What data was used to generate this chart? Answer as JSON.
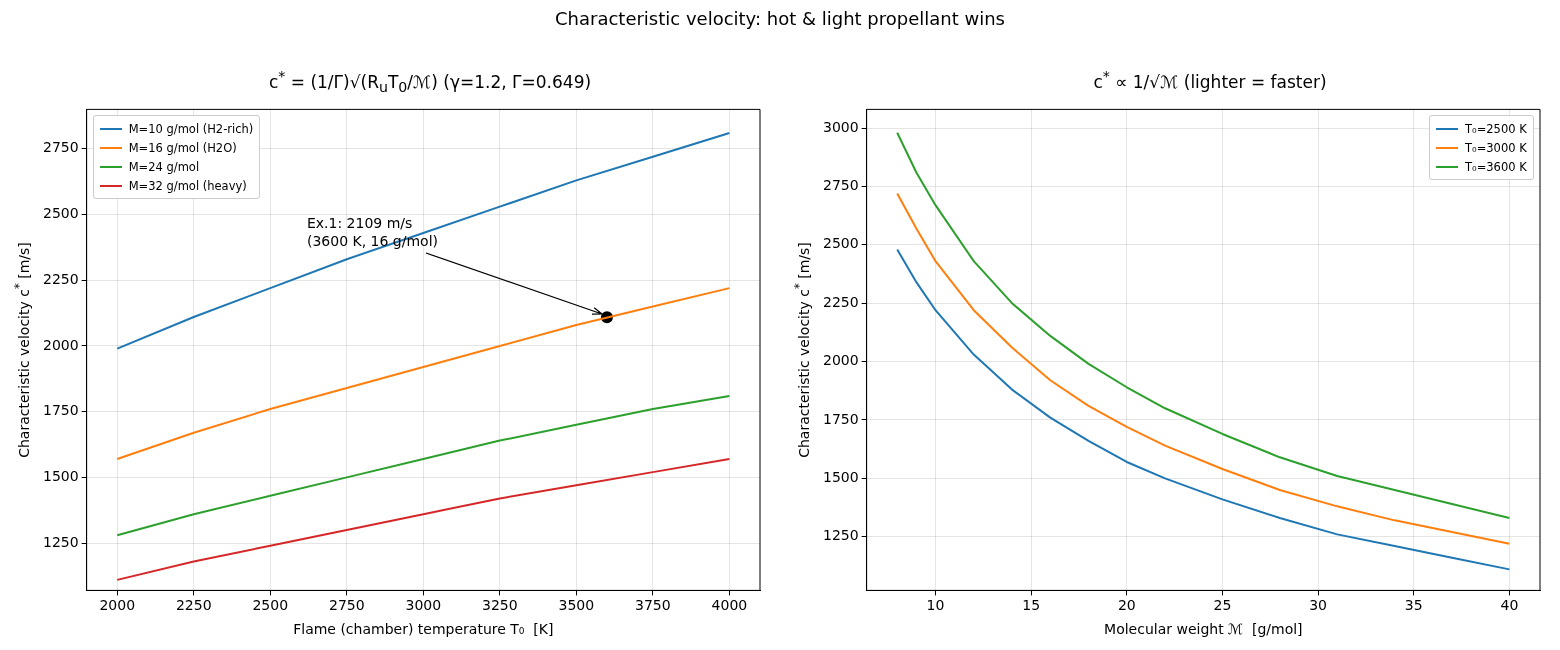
{
  "chart_data": [
    {
      "type": "line",
      "title": "c$^{*}$ = (1/Γ)√(R$_{u}$T$_{0}$/ℳ)   (γ=1.2, Γ=0.649)",
      "xlabel": "Flame (chamber) temperature T₀  [K]",
      "ylabel": "Characteristic velocity c$^{*}$  [m/s]",
      "x": [
        2000,
        2250,
        2500,
        2750,
        3000,
        3250,
        3500,
        3750,
        4000
      ],
      "series": [
        {
          "name": "M=10 g/mol (H2-rich)",
          "color": "#1f77b4",
          "values": [
            1990,
            2110,
            2220,
            2330,
            2430,
            2530,
            2630,
            2720,
            2810
          ]
        },
        {
          "name": "M=16 g/mol (H2O)",
          "color": "#ff7f0e",
          "values": [
            1570,
            1670,
            1760,
            1840,
            1920,
            2000,
            2080,
            2150,
            2220
          ]
        },
        {
          "name": "M=24 g/mol",
          "color": "#2ca02c",
          "values": [
            1280,
            1360,
            1430,
            1500,
            1570,
            1640,
            1700,
            1760,
            1810
          ]
        },
        {
          "name": "M=32 g/mol (heavy)",
          "color": "#d62728",
          "values": [
            1110,
            1180,
            1240,
            1300,
            1360,
            1420,
            1470,
            1520,
            1570
          ]
        },
        {
          "type": "scatter",
          "color": "#000000",
          "x": [
            3600
          ],
          "values": [
            2109
          ],
          "marker": "circle"
        }
      ],
      "xlim": [
        1900,
        4100
      ],
      "xticks": [
        2000,
        2250,
        2500,
        2750,
        3000,
        3250,
        3500,
        3750,
        4000
      ],
      "ylim": [
        1070,
        2900
      ],
      "yticks": [
        1250,
        1500,
        1750,
        2000,
        2250,
        2500,
        2750
      ],
      "annotations": [
        "Characteristic velocity: hot & light propellant wins",
        {
          "text": "Ex.1: 2109 m/s\n(3600 K, 16 g/mol)",
          "x": 3600,
          "y": 2109
        }
      ],
      "grid": true,
      "legend": "top left",
      "marker": "none",
      "line_style": "solid"
    },
    {
      "type": "line",
      "title": "c$^{*}$ ∝ 1/√ℳ  (lighter = faster)",
      "xlabel": "Molecular weight ℳ  [g/mol]",
      "ylabel": "Characteristic velocity c$^{*}$  [m/s]",
      "x": [
        8,
        9,
        10,
        12,
        14,
        16,
        18,
        20,
        22,
        25,
        28,
        31,
        34,
        37,
        40
      ],
      "series": [
        {
          "name": "T₀=2500 K",
          "color": "#1f77b4",
          "values": [
            2480,
            2340,
            2220,
            2030,
            1880,
            1760,
            1660,
            1570,
            1500,
            1410,
            1330,
            1260,
            1210,
            1160,
            1110
          ]
        },
        {
          "name": "T₀=3000 K",
          "color": "#ff7f0e",
          "values": [
            2720,
            2570,
            2430,
            2220,
            2060,
            1920,
            1810,
            1720,
            1640,
            1540,
            1450,
            1380,
            1320,
            1270,
            1220
          ]
        },
        {
          "name": "T₀=3600 K",
          "color": "#2ca02c",
          "values": [
            2980,
            2810,
            2670,
            2430,
            2250,
            2110,
            1990,
            1890,
            1800,
            1690,
            1590,
            1510,
            1450,
            1390,
            1330
          ]
        }
      ],
      "xlim": [
        6.4,
        41.6
      ],
      "xticks": [
        10,
        15,
        20,
        25,
        30,
        35,
        40
      ],
      "ylim": [
        1020,
        3080
      ],
      "yticks": [
        1250,
        1500,
        1750,
        2000,
        2250,
        2500,
        2750,
        3000
      ],
      "grid": true,
      "legend": "top right",
      "marker": "none",
      "line_style": "solid"
    }
  ]
}
